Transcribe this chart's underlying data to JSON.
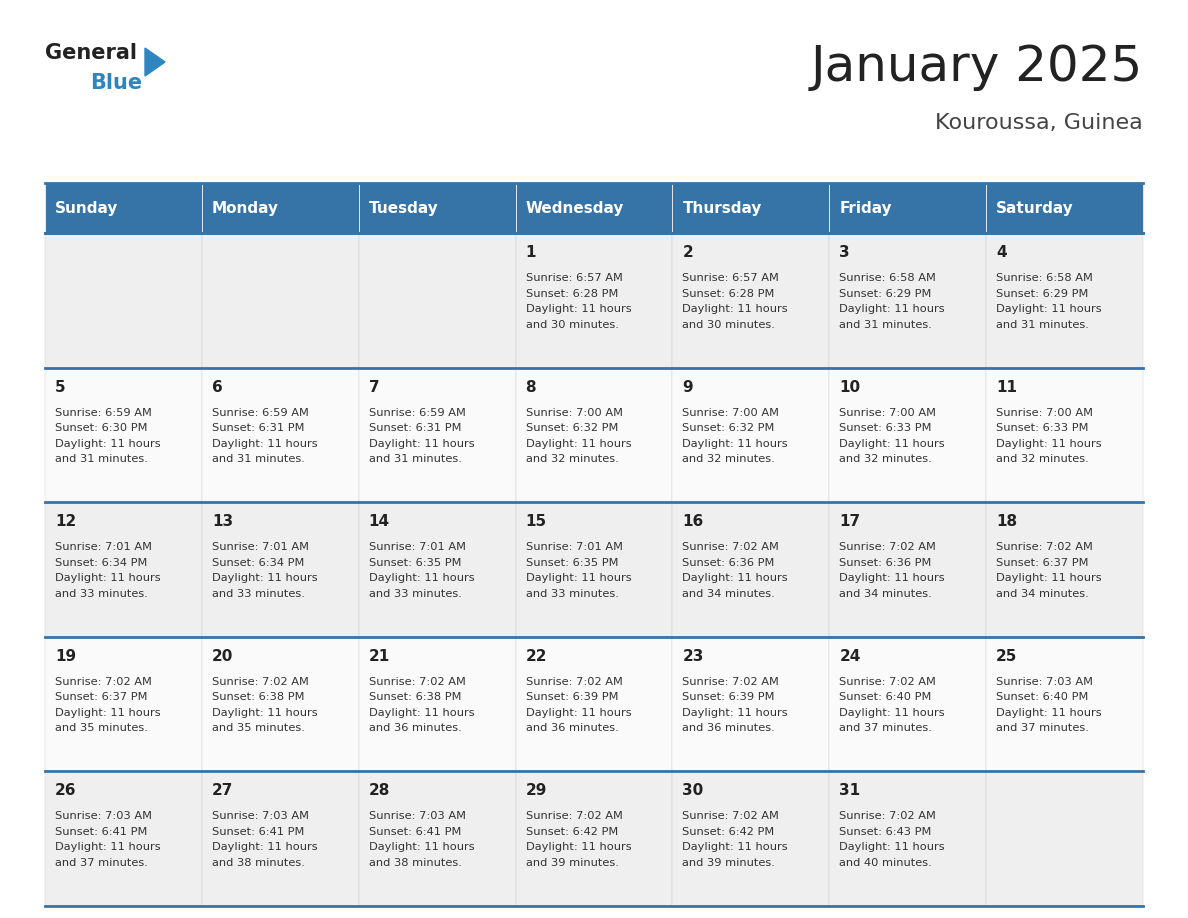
{
  "title": "January 2025",
  "subtitle": "Kouroussa, Guinea",
  "header_bg": "#3674a8",
  "header_text_color": "#FFFFFF",
  "cell_bg_odd": "#EFEFEF",
  "cell_bg_even": "#FAFAFA",
  "day_names": [
    "Sunday",
    "Monday",
    "Tuesday",
    "Wednesday",
    "Thursday",
    "Friday",
    "Saturday"
  ],
  "title_color": "#222222",
  "subtitle_color": "#444444",
  "day_num_color": "#222222",
  "cell_text_color": "#333333",
  "divider_color": "#3674a8",
  "logo_text_color": "#222222",
  "logo_blue_color": "#2E86C1",
  "days": [
    {
      "day": 1,
      "col": 3,
      "row": 0,
      "sunrise": "6:57 AM",
      "sunset": "6:28 PM",
      "daylight_h": "11 hours",
      "daylight_m": "30 minutes"
    },
    {
      "day": 2,
      "col": 4,
      "row": 0,
      "sunrise": "6:57 AM",
      "sunset": "6:28 PM",
      "daylight_h": "11 hours",
      "daylight_m": "30 minutes"
    },
    {
      "day": 3,
      "col": 5,
      "row": 0,
      "sunrise": "6:58 AM",
      "sunset": "6:29 PM",
      "daylight_h": "11 hours",
      "daylight_m": "31 minutes"
    },
    {
      "day": 4,
      "col": 6,
      "row": 0,
      "sunrise": "6:58 AM",
      "sunset": "6:29 PM",
      "daylight_h": "11 hours",
      "daylight_m": "31 minutes"
    },
    {
      "day": 5,
      "col": 0,
      "row": 1,
      "sunrise": "6:59 AM",
      "sunset": "6:30 PM",
      "daylight_h": "11 hours",
      "daylight_m": "31 minutes"
    },
    {
      "day": 6,
      "col": 1,
      "row": 1,
      "sunrise": "6:59 AM",
      "sunset": "6:31 PM",
      "daylight_h": "11 hours",
      "daylight_m": "31 minutes"
    },
    {
      "day": 7,
      "col": 2,
      "row": 1,
      "sunrise": "6:59 AM",
      "sunset": "6:31 PM",
      "daylight_h": "11 hours",
      "daylight_m": "31 minutes"
    },
    {
      "day": 8,
      "col": 3,
      "row": 1,
      "sunrise": "7:00 AM",
      "sunset": "6:32 PM",
      "daylight_h": "11 hours",
      "daylight_m": "32 minutes"
    },
    {
      "day": 9,
      "col": 4,
      "row": 1,
      "sunrise": "7:00 AM",
      "sunset": "6:32 PM",
      "daylight_h": "11 hours",
      "daylight_m": "32 minutes"
    },
    {
      "day": 10,
      "col": 5,
      "row": 1,
      "sunrise": "7:00 AM",
      "sunset": "6:33 PM",
      "daylight_h": "11 hours",
      "daylight_m": "32 minutes"
    },
    {
      "day": 11,
      "col": 6,
      "row": 1,
      "sunrise": "7:00 AM",
      "sunset": "6:33 PM",
      "daylight_h": "11 hours",
      "daylight_m": "32 minutes"
    },
    {
      "day": 12,
      "col": 0,
      "row": 2,
      "sunrise": "7:01 AM",
      "sunset": "6:34 PM",
      "daylight_h": "11 hours",
      "daylight_m": "33 minutes"
    },
    {
      "day": 13,
      "col": 1,
      "row": 2,
      "sunrise": "7:01 AM",
      "sunset": "6:34 PM",
      "daylight_h": "11 hours",
      "daylight_m": "33 minutes"
    },
    {
      "day": 14,
      "col": 2,
      "row": 2,
      "sunrise": "7:01 AM",
      "sunset": "6:35 PM",
      "daylight_h": "11 hours",
      "daylight_m": "33 minutes"
    },
    {
      "day": 15,
      "col": 3,
      "row": 2,
      "sunrise": "7:01 AM",
      "sunset": "6:35 PM",
      "daylight_h": "11 hours",
      "daylight_m": "33 minutes"
    },
    {
      "day": 16,
      "col": 4,
      "row": 2,
      "sunrise": "7:02 AM",
      "sunset": "6:36 PM",
      "daylight_h": "11 hours",
      "daylight_m": "34 minutes"
    },
    {
      "day": 17,
      "col": 5,
      "row": 2,
      "sunrise": "7:02 AM",
      "sunset": "6:36 PM",
      "daylight_h": "11 hours",
      "daylight_m": "34 minutes"
    },
    {
      "day": 18,
      "col": 6,
      "row": 2,
      "sunrise": "7:02 AM",
      "sunset": "6:37 PM",
      "daylight_h": "11 hours",
      "daylight_m": "34 minutes"
    },
    {
      "day": 19,
      "col": 0,
      "row": 3,
      "sunrise": "7:02 AM",
      "sunset": "6:37 PM",
      "daylight_h": "11 hours",
      "daylight_m": "35 minutes"
    },
    {
      "day": 20,
      "col": 1,
      "row": 3,
      "sunrise": "7:02 AM",
      "sunset": "6:38 PM",
      "daylight_h": "11 hours",
      "daylight_m": "35 minutes"
    },
    {
      "day": 21,
      "col": 2,
      "row": 3,
      "sunrise": "7:02 AM",
      "sunset": "6:38 PM",
      "daylight_h": "11 hours",
      "daylight_m": "36 minutes"
    },
    {
      "day": 22,
      "col": 3,
      "row": 3,
      "sunrise": "7:02 AM",
      "sunset": "6:39 PM",
      "daylight_h": "11 hours",
      "daylight_m": "36 minutes"
    },
    {
      "day": 23,
      "col": 4,
      "row": 3,
      "sunrise": "7:02 AM",
      "sunset": "6:39 PM",
      "daylight_h": "11 hours",
      "daylight_m": "36 minutes"
    },
    {
      "day": 24,
      "col": 5,
      "row": 3,
      "sunrise": "7:02 AM",
      "sunset": "6:40 PM",
      "daylight_h": "11 hours",
      "daylight_m": "37 minutes"
    },
    {
      "day": 25,
      "col": 6,
      "row": 3,
      "sunrise": "7:03 AM",
      "sunset": "6:40 PM",
      "daylight_h": "11 hours",
      "daylight_m": "37 minutes"
    },
    {
      "day": 26,
      "col": 0,
      "row": 4,
      "sunrise": "7:03 AM",
      "sunset": "6:41 PM",
      "daylight_h": "11 hours",
      "daylight_m": "37 minutes"
    },
    {
      "day": 27,
      "col": 1,
      "row": 4,
      "sunrise": "7:03 AM",
      "sunset": "6:41 PM",
      "daylight_h": "11 hours",
      "daylight_m": "38 minutes"
    },
    {
      "day": 28,
      "col": 2,
      "row": 4,
      "sunrise": "7:03 AM",
      "sunset": "6:41 PM",
      "daylight_h": "11 hours",
      "daylight_m": "38 minutes"
    },
    {
      "day": 29,
      "col": 3,
      "row": 4,
      "sunrise": "7:02 AM",
      "sunset": "6:42 PM",
      "daylight_h": "11 hours",
      "daylight_m": "39 minutes"
    },
    {
      "day": 30,
      "col": 4,
      "row": 4,
      "sunrise": "7:02 AM",
      "sunset": "6:42 PM",
      "daylight_h": "11 hours",
      "daylight_m": "39 minutes"
    },
    {
      "day": 31,
      "col": 5,
      "row": 4,
      "sunrise": "7:02 AM",
      "sunset": "6:43 PM",
      "daylight_h": "11 hours",
      "daylight_m": "40 minutes"
    }
  ]
}
